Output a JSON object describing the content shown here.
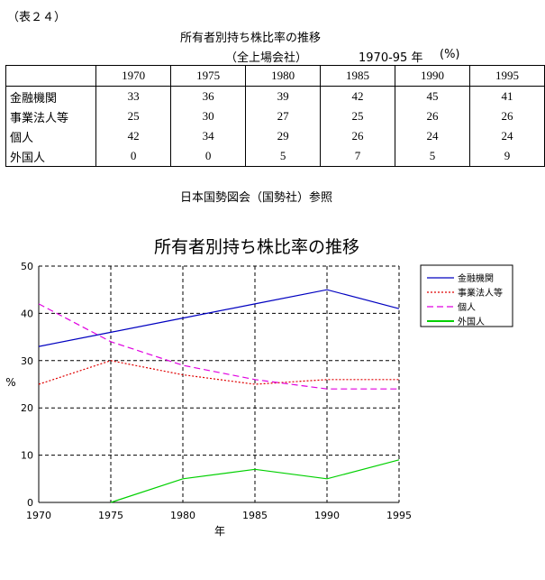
{
  "doc_label": "（表２４）",
  "table": {
    "title": "所有者別持ち株比率の推移",
    "subtitle": "（全上場会社）",
    "range": "1970-95 年",
    "unit": "(%)",
    "years": [
      "1970",
      "1975",
      "1980",
      "1985",
      "1990",
      "1995"
    ],
    "rows": [
      {
        "label": "金融機関",
        "values": [
          "33",
          "36",
          "39",
          "42",
          "45",
          "41"
        ]
      },
      {
        "label": "事業法人等",
        "values": [
          "25",
          "30",
          "27",
          "25",
          "26",
          "26"
        ]
      },
      {
        "label": "個人",
        "values": [
          "42",
          "34",
          "29",
          "26",
          "24",
          "24"
        ]
      },
      {
        "label": "外国人",
        "values": [
          "0",
          "0",
          "5",
          "7",
          "5",
          "9"
        ]
      }
    ]
  },
  "source_note": "日本国勢図会（国勢社）参照",
  "chart_data": {
    "type": "line",
    "title": "所有者別持ち株比率の推移",
    "xlabel": "年",
    "ylabel": "%",
    "x": [
      1970,
      1975,
      1980,
      1985,
      1990,
      1995
    ],
    "xticks": [
      "1970",
      "1975",
      "1980",
      "1985",
      "1990",
      "1995"
    ],
    "yticks": [
      "0",
      "10",
      "20",
      "30",
      "40",
      "50"
    ],
    "xlim": [
      1970,
      1995
    ],
    "ylim": [
      0,
      50
    ],
    "grid": true,
    "legend_position": "right",
    "series": [
      {
        "name": "金融機関",
        "values": [
          33,
          36,
          39,
          42,
          45,
          41
        ],
        "color": "#0000c0",
        "dash": "solid"
      },
      {
        "name": "事業法人等",
        "values": [
          25,
          30,
          27,
          25,
          26,
          26
        ],
        "color": "#e00000",
        "dash": "dotted"
      },
      {
        "name": "個人",
        "values": [
          42,
          34,
          29,
          26,
          24,
          24
        ],
        "color": "#e000e0",
        "dash": "dashed"
      },
      {
        "name": "外国人",
        "values": [
          null,
          0,
          5,
          7,
          5,
          9
        ],
        "color": "#00d000",
        "dash": "solid"
      }
    ]
  }
}
